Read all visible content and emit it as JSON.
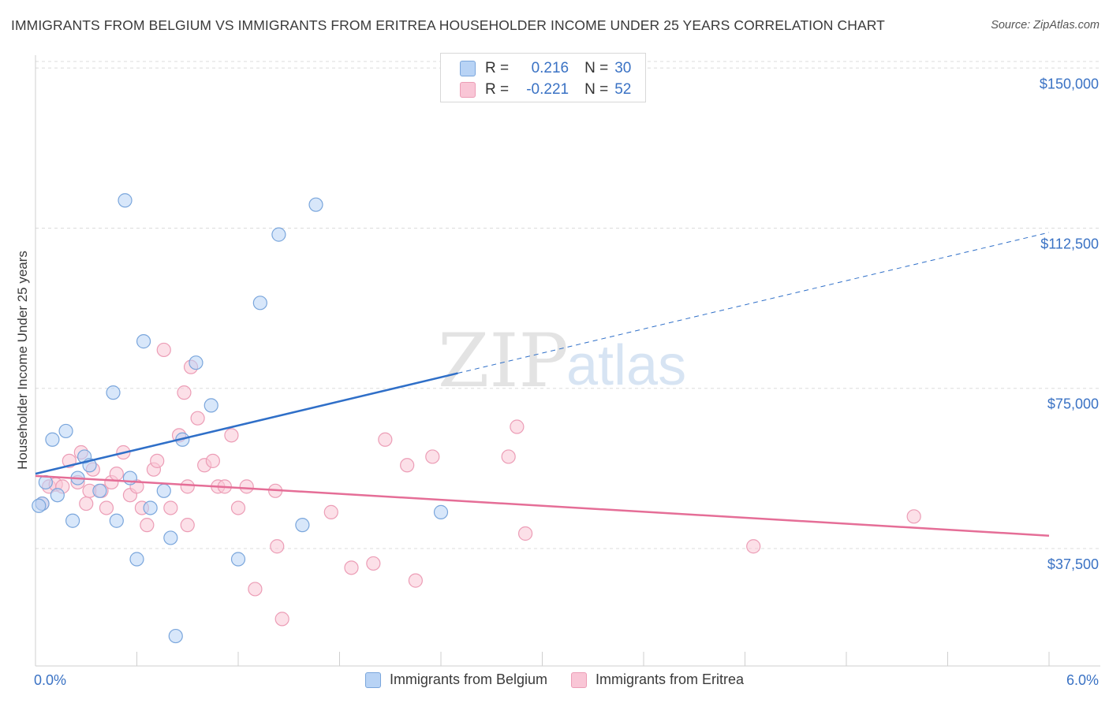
{
  "title": "IMMIGRANTS FROM BELGIUM VS IMMIGRANTS FROM ERITREA HOUSEHOLDER INCOME UNDER 25 YEARS CORRELATION CHART",
  "source": "Source: ZipAtlas.com",
  "watermark": {
    "zip": "ZIP",
    "atlas": "atlas"
  },
  "legend_top": [
    {
      "r_label": "R =",
      "r_value": "0.216",
      "n_label": "N =",
      "n_value": "30"
    },
    {
      "r_label": "R =",
      "r_value": "-0.221",
      "n_label": "N =",
      "n_value": "52"
    }
  ],
  "colors": {
    "belgium_fill": "#b8d3f5",
    "belgium_stroke": "#7aa6dc",
    "belgium_line": "#2f6fc8",
    "eritrea_fill": "#f9c6d6",
    "eritrea_stroke": "#ec9db6",
    "eritrea_line": "#e56e97",
    "tick_label": "#3a72c4"
  },
  "chart_data": {
    "type": "scatter",
    "title": "IMMIGRANTS FROM BELGIUM VS IMMIGRANTS FROM ERITREA HOUSEHOLDER INCOME UNDER 25 YEARS CORRELATION CHART",
    "xlabel": "",
    "ylabel": "Householder Income Under 25 years",
    "xlim": [
      0,
      6
    ],
    "ylim": [
      10000,
      153000
    ],
    "x_tick_labels": [
      "0.0%",
      "6.0%"
    ],
    "y_ticks": [
      37500,
      75000,
      112500,
      150000
    ],
    "y_tick_labels": [
      "$37,500",
      "$75,000",
      "$112,500",
      "$150,000"
    ],
    "grid": true,
    "legend_position": "bottom",
    "series": [
      {
        "name": "Immigrants from Belgium",
        "r": 0.216,
        "n": 30,
        "trend": {
          "x0": 0,
          "y0": 55000,
          "x1_solid": 2.5,
          "x1": 6.0,
          "y1": 111500
        },
        "points": [
          [
            0.04,
            48000
          ],
          [
            0.06,
            53000
          ],
          [
            0.1,
            63000
          ],
          [
            0.13,
            50000
          ],
          [
            0.18,
            65000
          ],
          [
            0.22,
            44000
          ],
          [
            0.25,
            54000
          ],
          [
            0.29,
            59000
          ],
          [
            0.32,
            57000
          ],
          [
            0.38,
            51000
          ],
          [
            0.46,
            74000
          ],
          [
            0.48,
            44000
          ],
          [
            0.53,
            119000
          ],
          [
            0.56,
            54000
          ],
          [
            0.6,
            35000
          ],
          [
            0.64,
            86000
          ],
          [
            0.68,
            47000
          ],
          [
            0.76,
            51000
          ],
          [
            0.8,
            40000
          ],
          [
            0.83,
            17000
          ],
          [
            0.87,
            63000
          ],
          [
            0.95,
            81000
          ],
          [
            1.04,
            71000
          ],
          [
            1.2,
            35000
          ],
          [
            1.33,
            95000
          ],
          [
            1.44,
            111000
          ],
          [
            1.58,
            43000
          ],
          [
            1.66,
            118000
          ],
          [
            2.4,
            46000
          ],
          [
            0.02,
            47500
          ]
        ]
      },
      {
        "name": "Immigrants from Eritrea",
        "r": -0.221,
        "n": 52,
        "trend": {
          "x0": 0,
          "y0": 54500,
          "x1": 6.0,
          "y1": 40500
        },
        "points": [
          [
            0.04,
            48000
          ],
          [
            0.08,
            52000
          ],
          [
            0.12,
            52500
          ],
          [
            0.16,
            52000
          ],
          [
            0.2,
            58000
          ],
          [
            0.25,
            53000
          ],
          [
            0.27,
            60000
          ],
          [
            0.32,
            51000
          ],
          [
            0.34,
            56000
          ],
          [
            0.39,
            51000
          ],
          [
            0.42,
            47000
          ],
          [
            0.45,
            53000
          ],
          [
            0.48,
            55000
          ],
          [
            0.52,
            60000
          ],
          [
            0.56,
            50000
          ],
          [
            0.6,
            52000
          ],
          [
            0.63,
            47000
          ],
          [
            0.66,
            43000
          ],
          [
            0.7,
            56000
          ],
          [
            0.72,
            58000
          ],
          [
            0.76,
            84000
          ],
          [
            0.8,
            47000
          ],
          [
            0.85,
            64000
          ],
          [
            0.88,
            74000
          ],
          [
            0.9,
            43000
          ],
          [
            0.92,
            80000
          ],
          [
            0.96,
            68000
          ],
          [
            1.0,
            57000
          ],
          [
            1.05,
            58000
          ],
          [
            1.08,
            52000
          ],
          [
            1.12,
            52000
          ],
          [
            1.16,
            64000
          ],
          [
            1.2,
            47000
          ],
          [
            1.25,
            52000
          ],
          [
            1.3,
            28000
          ],
          [
            1.42,
            51000
          ],
          [
            1.43,
            38000
          ],
          [
            1.46,
            21000
          ],
          [
            1.75,
            46000
          ],
          [
            1.87,
            33000
          ],
          [
            2.0,
            34000
          ],
          [
            2.07,
            63000
          ],
          [
            2.2,
            57000
          ],
          [
            2.25,
            30000
          ],
          [
            2.35,
            59000
          ],
          [
            2.8,
            59000
          ],
          [
            2.85,
            66000
          ],
          [
            2.9,
            41000
          ],
          [
            4.25,
            38000
          ],
          [
            5.2,
            45000
          ],
          [
            0.9,
            52000
          ],
          [
            0.3,
            48000
          ]
        ]
      }
    ]
  }
}
